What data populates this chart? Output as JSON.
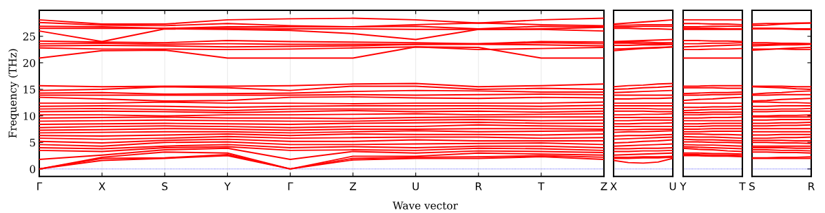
{
  "chart_data": [
    {
      "type": "line",
      "ylabel": "Frequency (THz)",
      "xlabel": "Wave vector",
      "grid": "x",
      "marker": "none",
      "line_style": "solid",
      "categories": [
        "Γ",
        "X",
        "S",
        "Y",
        "Γ",
        "Z",
        "U",
        "R",
        "T",
        "Z"
      ],
      "ylim": [
        -1.4,
        29.9
      ],
      "yticks": [
        0,
        5,
        10,
        15,
        20,
        25
      ],
      "ref_lines": [
        {
          "axis": "y",
          "value": 0,
          "color": "#0000ff",
          "line_style": "dotted"
        }
      ],
      "series": [
        {
          "color": "#ff0000",
          "values": [
            0,
            1.6,
            2.0,
            2.5,
            0,
            1.7,
            2.0,
            2.0,
            2.3,
            1.8
          ]
        },
        {
          "color": "#ff0000",
          "values": [
            0,
            2.0,
            2.1,
            2.7,
            0,
            2.0,
            2.2,
            2.3,
            2.5,
            2.2
          ]
        },
        {
          "color": "#ff0000",
          "values": [
            0,
            2.2,
            3.2,
            3.0,
            0,
            2.4,
            2.4,
            3.0,
            2.8,
            2.6
          ]
        },
        {
          "color": "#ff0000",
          "values": [
            1.8,
            2.6,
            3.6,
            3.9,
            1.8,
            3.3,
            3.0,
            3.4,
            3.3,
            3.1
          ]
        },
        {
          "color": "#ff0000",
          "values": [
            3.5,
            3.3,
            4.0,
            4.2,
            3.5,
            3.6,
            3.5,
            3.9,
            3.8,
            3.5
          ]
        },
        {
          "color": "#ff0000",
          "values": [
            4.0,
            3.8,
            4.3,
            4.6,
            4.0,
            4.2,
            4.0,
            4.3,
            4.3,
            4.0
          ]
        },
        {
          "color": "#ff0000",
          "values": [
            4.6,
            4.3,
            5.0,
            5.1,
            4.6,
            4.6,
            4.7,
            4.8,
            4.9,
            4.6
          ]
        },
        {
          "color": "#ff0000",
          "values": [
            5.2,
            4.9,
            5.4,
            5.6,
            5.2,
            5.2,
            5.5,
            5.3,
            5.3,
            5.3
          ]
        },
        {
          "color": "#ff0000",
          "values": [
            5.8,
            5.6,
            5.8,
            6.1,
            5.8,
            5.9,
            6.0,
            6.0,
            5.8,
            5.9
          ]
        },
        {
          "color": "#ff0000",
          "values": [
            6.3,
            6.2,
            6.4,
            6.6,
            6.3,
            6.6,
            6.5,
            6.5,
            6.4,
            6.6
          ]
        },
        {
          "color": "#ff0000",
          "values": [
            6.8,
            6.9,
            7.0,
            7.0,
            6.8,
            7.0,
            7.2,
            7.0,
            7.1,
            7.2
          ]
        },
        {
          "color": "#ff0000",
          "values": [
            7.3,
            7.4,
            7.6,
            7.5,
            7.3,
            7.5,
            7.5,
            7.6,
            7.6,
            7.5
          ]
        },
        {
          "color": "#ff0000",
          "values": [
            7.8,
            8.0,
            8.1,
            8.0,
            7.8,
            8.0,
            8.0,
            8.3,
            8.1,
            8.0
          ]
        },
        {
          "color": "#ff0000",
          "values": [
            8.4,
            8.5,
            8.6,
            8.5,
            8.4,
            8.6,
            8.7,
            8.8,
            8.6,
            8.6
          ]
        },
        {
          "color": "#ff0000",
          "values": [
            9.0,
            9.1,
            9.2,
            9.1,
            9.0,
            9.0,
            9.2,
            9.3,
            9.1,
            9.2
          ]
        },
        {
          "color": "#ff0000",
          "values": [
            9.6,
            9.7,
            9.8,
            9.6,
            9.6,
            9.5,
            9.7,
            9.8,
            9.8,
            9.8
          ]
        },
        {
          "color": "#ff0000",
          "values": [
            10.2,
            10.2,
            10.0,
            10.2,
            10.2,
            10.3,
            10.4,
            10.2,
            10.3,
            10.4
          ]
        },
        {
          "color": "#ff0000",
          "values": [
            10.8,
            10.9,
            10.8,
            10.6,
            10.8,
            11.0,
            10.8,
            10.9,
            10.7,
            10.9
          ]
        },
        {
          "color": "#ff0000",
          "values": [
            11.3,
            11.4,
            11.2,
            11.0,
            11.3,
            11.3,
            11.3,
            11.4,
            11.3,
            11.4
          ]
        },
        {
          "color": "#ff0000",
          "values": [
            11.8,
            11.9,
            11.8,
            11.6,
            11.8,
            11.9,
            11.9,
            11.9,
            11.8,
            12.0
          ]
        },
        {
          "color": "#ff0000",
          "values": [
            12.4,
            12.4,
            12.6,
            12.4,
            12.4,
            12.3,
            12.4,
            12.4,
            12.4,
            12.6
          ]
        },
        {
          "color": "#ff0000",
          "values": [
            13.5,
            13.2,
            12.8,
            12.9,
            13.5,
            13.6,
            13.4,
            13.3,
            13.5,
            13.4
          ]
        },
        {
          "color": "#ff0000",
          "values": [
            13.9,
            13.9,
            13.9,
            13.9,
            13.9,
            14.0,
            13.9,
            14.0,
            14.1,
            14.0
          ]
        },
        {
          "color": "#ff0000",
          "values": [
            14.3,
            14.4,
            14.1,
            14.2,
            14.3,
            14.6,
            14.8,
            14.7,
            14.5,
            14.5
          ]
        },
        {
          "color": "#ff0000",
          "values": [
            14.8,
            15.0,
            15.5,
            15.3,
            14.8,
            15.6,
            15.6,
            15.0,
            15.2,
            15.0
          ]
        },
        {
          "color": "#ff0000",
          "values": [
            15.7,
            15.5,
            15.6,
            15.6,
            15.7,
            16.0,
            16.1,
            15.5,
            15.7,
            16.0
          ]
        },
        {
          "color": "#ff0000",
          "values": [
            20.9,
            22.3,
            22.4,
            20.9,
            20.9,
            20.9,
            23.0,
            22.9,
            20.9,
            20.9
          ]
        },
        {
          "color": "#ff0000",
          "values": [
            22.8,
            22.6,
            22.6,
            22.5,
            22.6,
            22.8,
            23.0,
            22.5,
            22.7,
            22.9
          ]
        },
        {
          "color": "#ff0000",
          "values": [
            23.2,
            23.3,
            23.2,
            23.0,
            23.1,
            23.2,
            23.5,
            23.5,
            23.4,
            23.2
          ]
        },
        {
          "color": "#ff0000",
          "values": [
            23.6,
            23.7,
            23.5,
            23.6,
            23.5,
            23.5,
            23.5,
            23.6,
            23.8,
            23.6
          ]
        },
        {
          "color": "#ff0000",
          "values": [
            24.1,
            23.9,
            23.8,
            24.2,
            24.0,
            23.9,
            23.8,
            23.6,
            24.0,
            23.9
          ]
        },
        {
          "color": "#ff0000",
          "values": [
            26.0,
            24.0,
            26.4,
            26.3,
            26.1,
            25.5,
            24.4,
            26.3,
            26.3,
            26.0
          ]
        },
        {
          "color": "#ff0000",
          "values": [
            26.5,
            26.5,
            26.5,
            26.5,
            26.4,
            26.4,
            26.3,
            26.3,
            26.4,
            26.7
          ]
        },
        {
          "color": "#ff0000",
          "values": [
            26.9,
            26.8,
            26.5,
            26.8,
            26.8,
            26.8,
            26.9,
            26.4,
            26.9,
            26.8
          ]
        },
        {
          "color": "#ff0000",
          "values": [
            27.6,
            27.1,
            27.0,
            27.4,
            27.0,
            26.8,
            27.2,
            27.5,
            27.2,
            27.0
          ]
        },
        {
          "color": "#ff0000",
          "values": [
            28.1,
            27.3,
            27.3,
            28.1,
            28.3,
            28.4,
            28.1,
            27.5,
            28.1,
            28.4
          ]
        }
      ]
    },
    {
      "type": "line",
      "marker": "none",
      "line_style": "solid",
      "tick_labels": "x",
      "categories": [
        "X",
        null,
        null,
        null,
        "U"
      ],
      "ylim": [
        -1.4,
        29.9
      ],
      "yticks": [
        0,
        5,
        10,
        15,
        20,
        25
      ],
      "ref_lines": [
        {
          "axis": "y",
          "value": 0,
          "color": "#0000ff",
          "line_style": "dotted"
        }
      ],
      "series": [
        {
          "color": "#ff0000",
          "values": [
            1.6,
            1.2,
            1.1,
            1.3,
            2.0
          ]
        },
        {
          "color": "#ff0000",
          "values": [
            2.0,
            2.0,
            2.1,
            2.1,
            2.2
          ]
        },
        {
          "color": "#ff0000",
          "values": [
            2.2,
            2.2,
            2.3,
            2.3,
            2.4
          ]
        },
        {
          "color": "#ff0000",
          "values": [
            2.6,
            2.7,
            2.8,
            2.9,
            3.0
          ]
        },
        {
          "color": "#ff0000",
          "values": [
            3.3,
            3.3,
            3.4,
            3.4,
            3.5
          ]
        },
        {
          "color": "#ff0000",
          "values": [
            3.8,
            3.8,
            3.9,
            3.9,
            4.0
          ]
        },
        {
          "color": "#ff0000",
          "values": [
            4.3,
            4.4,
            4.5,
            4.6,
            4.7
          ]
        },
        {
          "color": "#ff0000",
          "values": [
            4.9,
            5.0,
            5.2,
            5.3,
            5.5
          ]
        },
        {
          "color": "#ff0000",
          "values": [
            5.6,
            5.7,
            5.8,
            5.9,
            6.0
          ]
        },
        {
          "color": "#ff0000",
          "values": [
            6.2,
            6.3,
            6.3,
            6.4,
            6.5
          ]
        },
        {
          "color": "#ff0000",
          "values": [
            6.9,
            7.0,
            7.0,
            7.1,
            7.2
          ]
        },
        {
          "color": "#ff0000",
          "values": [
            7.4,
            7.4,
            7.5,
            7.5,
            7.5
          ]
        },
        {
          "color": "#ff0000",
          "values": [
            8.0,
            8.0,
            8.0,
            8.0,
            8.0
          ]
        },
        {
          "color": "#ff0000",
          "values": [
            8.5,
            8.5,
            8.6,
            8.6,
            8.7
          ]
        },
        {
          "color": "#ff0000",
          "values": [
            9.1,
            9.1,
            9.2,
            9.2,
            9.2
          ]
        },
        {
          "color": "#ff0000",
          "values": [
            9.7,
            9.7,
            9.7,
            9.7,
            9.7
          ]
        },
        {
          "color": "#ff0000",
          "values": [
            10.2,
            10.2,
            10.3,
            10.3,
            10.4
          ]
        },
        {
          "color": "#ff0000",
          "values": [
            10.9,
            10.9,
            10.9,
            10.8,
            10.8
          ]
        },
        {
          "color": "#ff0000",
          "values": [
            11.4,
            11.4,
            11.4,
            11.3,
            11.3
          ]
        },
        {
          "color": "#ff0000",
          "values": [
            11.9,
            11.9,
            11.9,
            11.9,
            11.9
          ]
        },
        {
          "color": "#ff0000",
          "values": [
            12.4,
            12.4,
            12.4,
            12.4,
            12.4
          ]
        },
        {
          "color": "#ff0000",
          "values": [
            13.2,
            13.2,
            13.3,
            13.3,
            13.4
          ]
        },
        {
          "color": "#ff0000",
          "values": [
            13.9,
            13.9,
            13.9,
            13.9,
            13.9
          ]
        },
        {
          "color": "#ff0000",
          "values": [
            14.4,
            14.5,
            14.6,
            14.7,
            14.8
          ]
        },
        {
          "color": "#ff0000",
          "values": [
            15.0,
            15.1,
            15.3,
            15.4,
            15.6
          ]
        },
        {
          "color": "#ff0000",
          "values": [
            15.5,
            15.7,
            15.8,
            16.0,
            16.1
          ]
        },
        {
          "color": "#ff0000",
          "values": [
            22.3,
            22.5,
            22.7,
            22.8,
            23.0
          ]
        },
        {
          "color": "#ff0000",
          "values": [
            22.6,
            22.7,
            22.8,
            22.9,
            23.0
          ]
        },
        {
          "color": "#ff0000",
          "values": [
            23.3,
            23.3,
            23.4,
            23.4,
            23.5
          ]
        },
        {
          "color": "#ff0000",
          "values": [
            23.7,
            23.7,
            23.6,
            23.6,
            23.5
          ]
        },
        {
          "color": "#ff0000",
          "values": [
            23.9,
            23.9,
            23.9,
            23.8,
            23.8
          ]
        },
        {
          "color": "#ff0000",
          "values": [
            24.0,
            24.1,
            24.2,
            24.3,
            24.4
          ]
        },
        {
          "color": "#ff0000",
          "values": [
            26.5,
            26.5,
            26.4,
            26.4,
            26.3
          ]
        },
        {
          "color": "#ff0000",
          "values": [
            26.8,
            26.8,
            26.9,
            26.9,
            26.9
          ]
        },
        {
          "color": "#ff0000",
          "values": [
            27.1,
            27.1,
            27.2,
            27.2,
            27.2
          ]
        },
        {
          "color": "#ff0000",
          "values": [
            27.3,
            27.5,
            27.7,
            27.9,
            28.1
          ]
        }
      ]
    },
    {
      "type": "line",
      "marker": "none",
      "line_style": "solid",
      "tick_labels": "x",
      "categories": [
        "Y",
        null,
        null,
        null,
        "T"
      ],
      "ylim": [
        -1.4,
        29.9
      ],
      "yticks": [
        0,
        5,
        10,
        15,
        20,
        25
      ],
      "ref_lines": [
        {
          "axis": "y",
          "value": 0,
          "color": "#0000ff",
          "line_style": "dotted"
        }
      ],
      "series": [
        {
          "color": "#ff0000",
          "values": [
            2.5,
            2.5,
            2.4,
            2.4,
            2.3
          ]
        },
        {
          "color": "#ff0000",
          "values": [
            2.7,
            2.7,
            2.6,
            2.6,
            2.5
          ]
        },
        {
          "color": "#ff0000",
          "values": [
            3.0,
            3.0,
            2.9,
            2.9,
            2.8
          ]
        },
        {
          "color": "#ff0000",
          "values": [
            3.9,
            3.7,
            3.6,
            3.4,
            3.3
          ]
        },
        {
          "color": "#ff0000",
          "values": [
            4.2,
            4.1,
            4.0,
            3.9,
            3.8
          ]
        },
        {
          "color": "#ff0000",
          "values": [
            4.6,
            4.5,
            4.5,
            4.4,
            4.3
          ]
        },
        {
          "color": "#ff0000",
          "values": [
            5.1,
            5.1,
            5.0,
            5.0,
            4.9
          ]
        },
        {
          "color": "#ff0000",
          "values": [
            5.6,
            5.5,
            5.5,
            5.4,
            5.3
          ]
        },
        {
          "color": "#ff0000",
          "values": [
            6.1,
            6.0,
            6.0,
            5.9,
            5.8
          ]
        },
        {
          "color": "#ff0000",
          "values": [
            6.6,
            6.6,
            6.5,
            6.5,
            6.4
          ]
        },
        {
          "color": "#ff0000",
          "values": [
            7.0,
            7.0,
            7.1,
            7.1,
            7.1
          ]
        },
        {
          "color": "#ff0000",
          "values": [
            7.5,
            7.5,
            7.6,
            7.6,
            7.6
          ]
        },
        {
          "color": "#ff0000",
          "values": [
            8.0,
            8.0,
            8.1,
            8.1,
            8.1
          ]
        },
        {
          "color": "#ff0000",
          "values": [
            8.5,
            8.5,
            8.6,
            8.6,
            8.6
          ]
        },
        {
          "color": "#ff0000",
          "values": [
            9.1,
            9.1,
            9.1,
            9.1,
            9.1
          ]
        },
        {
          "color": "#ff0000",
          "values": [
            9.6,
            9.6,
            9.7,
            9.7,
            9.8
          ]
        },
        {
          "color": "#ff0000",
          "values": [
            10.2,
            10.2,
            10.3,
            10.3,
            10.3
          ]
        },
        {
          "color": "#ff0000",
          "values": [
            10.6,
            10.6,
            10.7,
            10.7,
            10.7
          ]
        },
        {
          "color": "#ff0000",
          "values": [
            11.0,
            11.1,
            11.2,
            11.2,
            11.3
          ]
        },
        {
          "color": "#ff0000",
          "values": [
            11.6,
            11.6,
            11.7,
            11.7,
            11.8
          ]
        },
        {
          "color": "#ff0000",
          "values": [
            12.4,
            12.4,
            12.4,
            12.4,
            12.4
          ]
        },
        {
          "color": "#ff0000",
          "values": [
            12.9,
            13.1,
            13.2,
            13.4,
            13.5
          ]
        },
        {
          "color": "#ff0000",
          "values": [
            13.9,
            13.9,
            14.0,
            14.0,
            14.1
          ]
        },
        {
          "color": "#ff0000",
          "values": [
            14.2,
            14.3,
            14.4,
            14.4,
            14.5
          ]
        },
        {
          "color": "#ff0000",
          "values": [
            15.3,
            15.3,
            15.3,
            15.2,
            15.2
          ]
        },
        {
          "color": "#ff0000",
          "values": [
            15.6,
            15.6,
            15.7,
            15.7,
            15.7
          ]
        },
        {
          "color": "#ff0000",
          "values": [
            20.9,
            20.9,
            20.9,
            20.9,
            20.9
          ]
        },
        {
          "color": "#ff0000",
          "values": [
            22.5,
            22.5,
            22.6,
            22.6,
            22.7
          ]
        },
        {
          "color": "#ff0000",
          "values": [
            23.0,
            23.1,
            23.2,
            23.3,
            23.4
          ]
        },
        {
          "color": "#ff0000",
          "values": [
            23.6,
            23.6,
            23.7,
            23.7,
            23.8
          ]
        },
        {
          "color": "#ff0000",
          "values": [
            24.2,
            24.2,
            24.1,
            24.1,
            24.0
          ]
        },
        {
          "color": "#ff0000",
          "values": [
            26.3,
            26.3,
            26.3,
            26.3,
            26.3
          ]
        },
        {
          "color": "#ff0000",
          "values": [
            26.5,
            26.5,
            26.5,
            26.4,
            26.4
          ]
        },
        {
          "color": "#ff0000",
          "values": [
            26.8,
            26.8,
            26.9,
            26.9,
            26.9
          ]
        },
        {
          "color": "#ff0000",
          "values": [
            27.4,
            27.4,
            27.3,
            27.3,
            27.2
          ]
        },
        {
          "color": "#ff0000",
          "values": [
            28.1,
            28.1,
            28.1,
            28.1,
            28.1
          ]
        }
      ]
    },
    {
      "type": "line",
      "marker": "none",
      "line_style": "solid",
      "tick_labels": "x",
      "categories": [
        "S",
        null,
        null,
        null,
        "R"
      ],
      "ylim": [
        -1.4,
        29.9
      ],
      "yticks": [
        0,
        5,
        10,
        15,
        20,
        25
      ],
      "ref_lines": [
        {
          "axis": "y",
          "value": 0,
          "color": "#0000ff",
          "line_style": "dotted"
        }
      ],
      "series": [
        {
          "color": "#ff0000",
          "values": [
            2.0,
            2.0,
            2.0,
            2.0,
            2.0
          ]
        },
        {
          "color": "#ff0000",
          "values": [
            2.1,
            2.1,
            2.2,
            2.2,
            2.3
          ]
        },
        {
          "color": "#ff0000",
          "values": [
            3.2,
            3.2,
            3.1,
            3.1,
            3.0
          ]
        },
        {
          "color": "#ff0000",
          "values": [
            3.6,
            3.6,
            3.5,
            3.5,
            3.4
          ]
        },
        {
          "color": "#ff0000",
          "values": [
            4.0,
            4.0,
            4.0,
            3.9,
            3.9
          ]
        },
        {
          "color": "#ff0000",
          "values": [
            4.3,
            4.3,
            4.3,
            4.3,
            4.3
          ]
        },
        {
          "color": "#ff0000",
          "values": [
            5.0,
            5.0,
            4.9,
            4.9,
            4.8
          ]
        },
        {
          "color": "#ff0000",
          "values": [
            5.4,
            5.4,
            5.4,
            5.3,
            5.3
          ]
        },
        {
          "color": "#ff0000",
          "values": [
            5.8,
            5.8,
            5.9,
            5.9,
            6.0
          ]
        },
        {
          "color": "#ff0000",
          "values": [
            6.4,
            6.4,
            6.5,
            6.5,
            6.5
          ]
        },
        {
          "color": "#ff0000",
          "values": [
            7.0,
            7.0,
            7.0,
            7.0,
            7.0
          ]
        },
        {
          "color": "#ff0000",
          "values": [
            7.6,
            7.6,
            7.6,
            7.6,
            7.6
          ]
        },
        {
          "color": "#ff0000",
          "values": [
            8.1,
            8.1,
            8.2,
            8.2,
            8.3
          ]
        },
        {
          "color": "#ff0000",
          "values": [
            8.6,
            8.6,
            8.7,
            8.7,
            8.8
          ]
        },
        {
          "color": "#ff0000",
          "values": [
            9.2,
            9.2,
            9.3,
            9.3,
            9.3
          ]
        },
        {
          "color": "#ff0000",
          "values": [
            9.8,
            9.8,
            9.8,
            9.8,
            9.8
          ]
        },
        {
          "color": "#ff0000",
          "values": [
            10.0,
            10.0,
            10.1,
            10.1,
            10.2
          ]
        },
        {
          "color": "#ff0000",
          "values": [
            10.8,
            10.8,
            10.9,
            10.9,
            10.9
          ]
        },
        {
          "color": "#ff0000",
          "values": [
            11.2,
            11.2,
            11.3,
            11.3,
            11.4
          ]
        },
        {
          "color": "#ff0000",
          "values": [
            11.8,
            11.8,
            11.9,
            11.9,
            11.9
          ]
        },
        {
          "color": "#ff0000",
          "values": [
            12.6,
            12.6,
            12.5,
            12.5,
            12.4
          ]
        },
        {
          "color": "#ff0000",
          "values": [
            12.8,
            12.9,
            13.1,
            13.2,
            13.3
          ]
        },
        {
          "color": "#ff0000",
          "values": [
            13.9,
            13.9,
            14.0,
            14.0,
            14.0
          ]
        },
        {
          "color": "#ff0000",
          "values": [
            14.1,
            14.3,
            14.4,
            14.6,
            14.7
          ]
        },
        {
          "color": "#ff0000",
          "values": [
            15.5,
            15.4,
            15.3,
            15.1,
            15.0
          ]
        },
        {
          "color": "#ff0000",
          "values": [
            15.6,
            15.6,
            15.6,
            15.5,
            15.5
          ]
        },
        {
          "color": "#ff0000",
          "values": [
            22.4,
            22.5,
            22.7,
            22.8,
            22.9
          ]
        },
        {
          "color": "#ff0000",
          "values": [
            22.6,
            22.6,
            22.6,
            22.5,
            22.5
          ]
        },
        {
          "color": "#ff0000",
          "values": [
            23.2,
            23.3,
            23.4,
            23.4,
            23.5
          ]
        },
        {
          "color": "#ff0000",
          "values": [
            23.5,
            23.5,
            23.6,
            23.6,
            23.6
          ]
        },
        {
          "color": "#ff0000",
          "values": [
            23.8,
            23.8,
            23.7,
            23.7,
            23.6
          ]
        },
        {
          "color": "#ff0000",
          "values": [
            26.4,
            26.4,
            26.4,
            26.3,
            26.3
          ]
        },
        {
          "color": "#ff0000",
          "values": [
            26.5,
            26.5,
            26.4,
            26.4,
            26.3
          ]
        },
        {
          "color": "#ff0000",
          "values": [
            26.5,
            26.5,
            26.5,
            26.4,
            26.4
          ]
        },
        {
          "color": "#ff0000",
          "values": [
            27.0,
            27.1,
            27.3,
            27.4,
            27.5
          ]
        },
        {
          "color": "#ff0000",
          "values": [
            27.3,
            27.4,
            27.4,
            27.5,
            27.5
          ]
        }
      ]
    }
  ]
}
